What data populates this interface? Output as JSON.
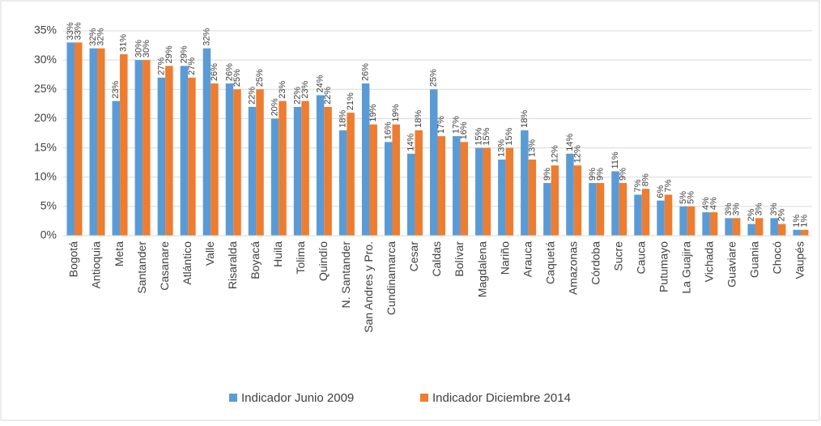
{
  "chart_data": {
    "type": "bar",
    "categories": [
      "Bogotá",
      "Antioquia",
      "Meta",
      "Santander",
      "Casanare",
      "Atlántico",
      "Valle",
      "Risaralda",
      "Boyacá",
      "Huila",
      "Tolima",
      "Quindío",
      "N. Santander",
      "San Andres y Pro.",
      "Cundinamarca",
      "Cesar",
      "Caldas",
      "Bolívar",
      "Magdalena",
      "Nariño",
      "Arauca",
      "Caquetá",
      "Amazonas",
      "Córdoba",
      "Sucre",
      "Cauca",
      "Putumayo",
      "La Guajira",
      "Vichada",
      "Guaviare",
      "Guania",
      "Chocó",
      "Vaupés"
    ],
    "series": [
      {
        "name": "Indicador Junio 2009",
        "color": "#5b9bd5",
        "values": [
          33,
          32,
          23,
          30,
          27,
          29,
          32,
          26,
          22,
          20,
          22,
          24,
          18,
          26,
          16,
          14,
          25,
          17,
          15,
          13,
          18,
          9,
          14,
          9,
          11,
          7,
          6,
          5,
          4,
          3,
          2,
          3,
          1
        ],
        "value_labels": [
          "33%",
          "32%",
          "23%",
          "30%",
          "27%",
          "29%",
          "32%",
          "26%",
          "22%",
          "20%",
          "22%",
          "24%",
          "18%",
          "26%",
          "16%",
          "14%",
          "25%",
          "17%",
          "15%",
          "13%",
          "18%",
          "9%",
          "14%",
          "9%",
          "11%",
          "7%",
          "6%",
          "5%",
          "4%",
          "3%",
          "2%",
          "3%",
          "1%"
        ]
      },
      {
        "name": "Indicador Diciembre 2014",
        "color": "#ed7d31",
        "values": [
          33,
          32,
          31,
          30,
          29,
          27,
          26,
          25,
          25,
          23,
          23,
          22,
          21,
          19,
          19,
          18,
          17,
          16,
          15,
          15,
          13,
          12,
          12,
          9,
          9,
          8,
          7,
          5,
          4,
          3,
          3,
          2,
          1
        ],
        "value_labels": [
          "33%",
          "32%",
          "31%",
          "30%",
          "29%",
          "27%",
          "26%",
          "25%",
          "25%",
          "23%",
          "23%",
          "22%",
          "21%",
          "19%",
          "19%",
          "18%",
          "17%",
          "16%",
          "15%",
          "15%",
          "13%",
          "12%",
          "12%",
          "9%",
          "9%",
          "8%",
          "7%",
          "5%",
          "4%",
          "3%",
          "3%",
          "2%",
          "1%"
        ]
      }
    ],
    "ylim": [
      0,
      35
    ],
    "yticks": [
      {
        "value": 0,
        "label": "0%"
      },
      {
        "value": 5,
        "label": "5%"
      },
      {
        "value": 10,
        "label": "10%"
      },
      {
        "value": 15,
        "label": "15%"
      },
      {
        "value": 20,
        "label": "20%"
      },
      {
        "value": 25,
        "label": "25%"
      },
      {
        "value": 30,
        "label": "30%"
      },
      {
        "value": 35,
        "label": "35%"
      }
    ],
    "grid": true,
    "legend": "bottom"
  }
}
